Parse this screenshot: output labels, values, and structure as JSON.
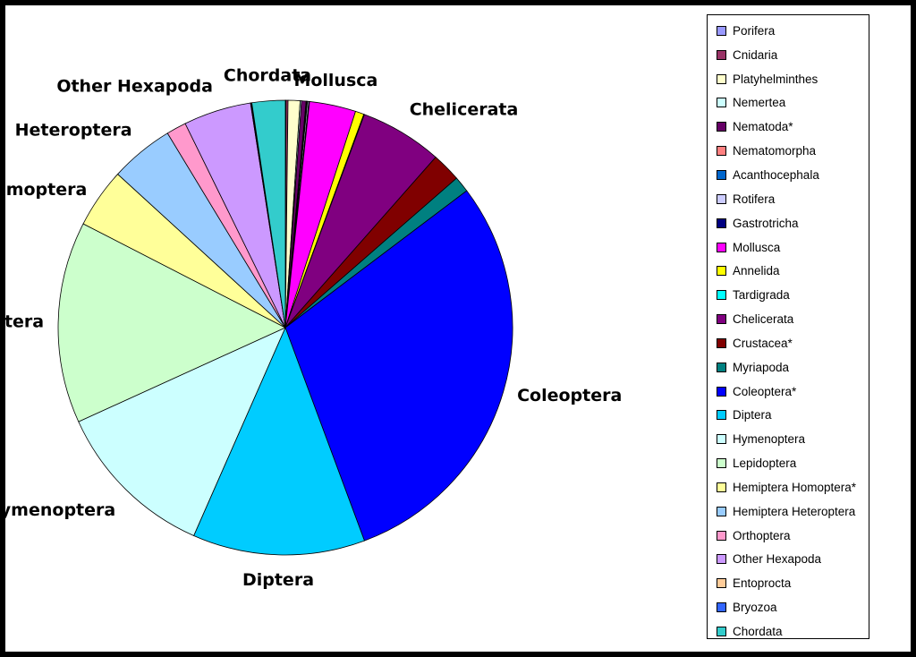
{
  "chart_data": {
    "type": "pie",
    "start_angle_deg": 0,
    "direction": "clockwise",
    "legend_position": "right",
    "categories": [
      "Porifera",
      "Cnidaria",
      "Platyhelminthes",
      "Nemertea",
      "Nematoda*",
      "Nematomorpha",
      "Acanthocephala",
      "Rotifera",
      "Gastrotricha",
      "Mollusca",
      "Annelida",
      "Tardigrada",
      "Chelicerata",
      "Crustacea*",
      "Myriapoda",
      "Coleoptera*",
      "Diptera",
      "Hymenoptera",
      "Lepidoptera",
      "Hemiptera Homoptera*",
      "Hemiptera Heteroptera",
      "Orthoptera",
      "Other Hexapoda",
      "Entoprocta",
      "Bryozoa",
      "Chordata"
    ],
    "values": [
      0.05,
      0.15,
      0.9,
      0.1,
      0.35,
      0.05,
      0.05,
      0.1,
      0.05,
      3.5,
      0.65,
      0.05,
      6.2,
      2.2,
      1.2,
      31.4,
      13.0,
      12.3,
      15.2,
      4.5,
      4.8,
      1.5,
      5.1,
      0.05,
      0.05,
      2.5
    ],
    "colors": [
      "#9999ff",
      "#993366",
      "#ffffcc",
      "#ccffff",
      "#660066",
      "#ff8080",
      "#0066cc",
      "#ccccff",
      "#000080",
      "#ff00ff",
      "#ffff00",
      "#00ffff",
      "#800080",
      "#800000",
      "#008080",
      "#0000ff",
      "#00ccff",
      "#ccffff",
      "#ccffcc",
      "#ffff99",
      "#99ccff",
      "#ff99cc",
      "#cc99ff",
      "#ffcc99",
      "#3366ff",
      "#33cccc"
    ],
    "slice_labels": [
      {
        "category_index": 9,
        "text": "Mollusca"
      },
      {
        "category_index": 12,
        "text": "Chelicerata"
      },
      {
        "category_index": 15,
        "text": "Coleoptera"
      },
      {
        "category_index": 16,
        "text": "Diptera"
      },
      {
        "category_index": 17,
        "text": "Hymenoptera"
      },
      {
        "category_index": 18,
        "text": "Lepidoptera"
      },
      {
        "category_index": 19,
        "text": "Homoptera"
      },
      {
        "category_index": 20,
        "text": "Heteroptera"
      },
      {
        "category_index": 22,
        "text": "Other  Hexapoda"
      },
      {
        "category_index": 25,
        "text": "Chordata"
      }
    ]
  }
}
